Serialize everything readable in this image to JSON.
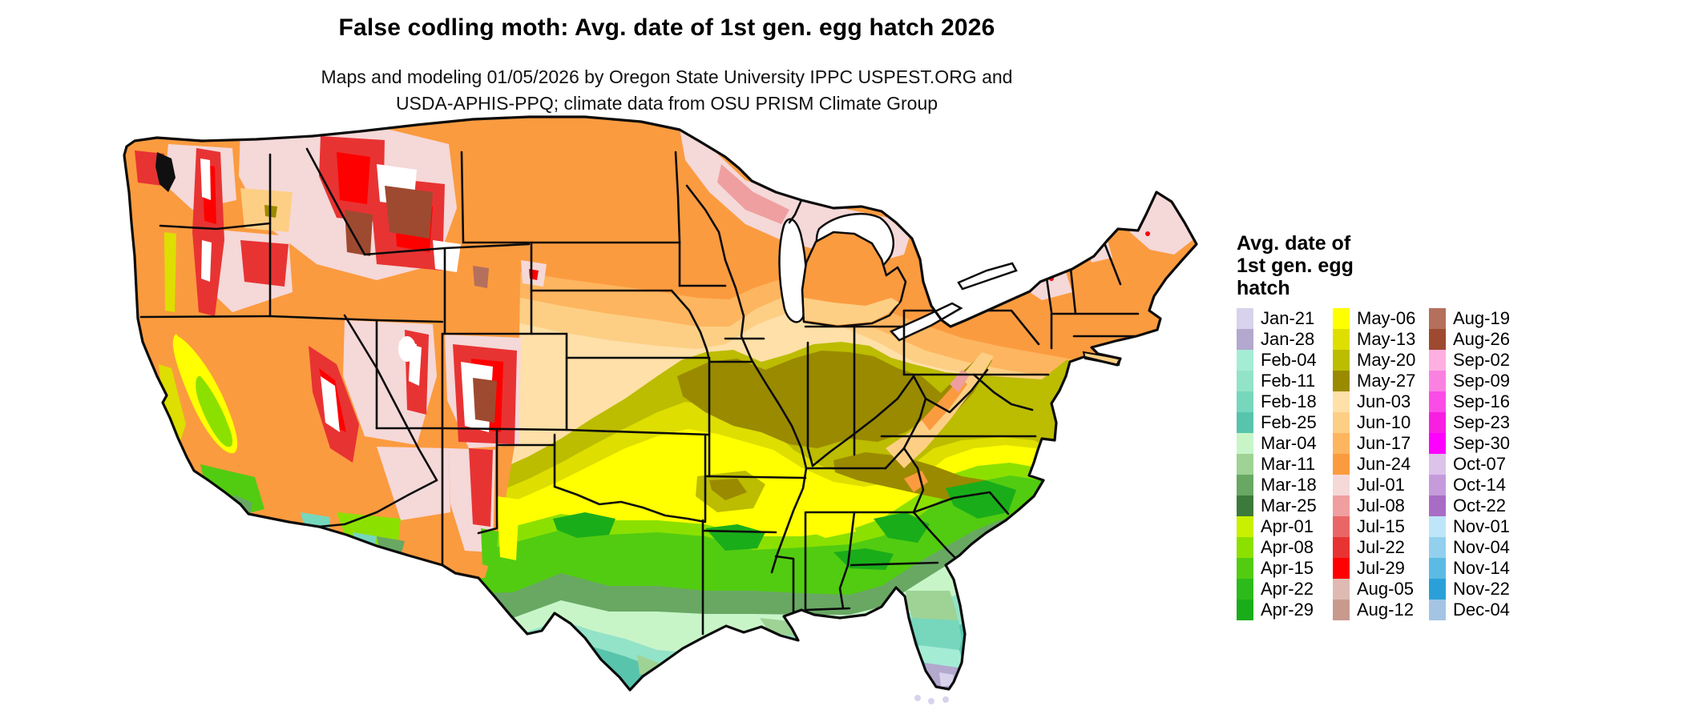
{
  "title": "False codling moth: Avg. date of 1st gen. egg hatch 2026",
  "subtitle_line1": "Maps and modeling 01/05/2026 by Oregon State University IPPC USPEST.ORG and",
  "subtitle_line2": "USDA-APHIS-PPQ; climate data from OSU PRISM Climate Group",
  "map": {
    "region": "Continental United States",
    "kind": "choropleth raster of average date of first generation egg hatch"
  },
  "legend": {
    "title_lines": [
      "Avg. date of",
      "1st gen. egg",
      "hatch"
    ],
    "columns": [
      {
        "entries": [
          {
            "label": "Jan-21",
            "color_key": "jan21"
          },
          {
            "label": "Jan-28",
            "color_key": "jan28"
          },
          {
            "label": "Feb-04",
            "color_key": "feb04"
          },
          {
            "label": "Feb-11",
            "color_key": "feb11"
          },
          {
            "label": "Feb-18",
            "color_key": "feb18"
          },
          {
            "label": "Feb-25",
            "color_key": "feb25"
          },
          {
            "label": "Mar-04",
            "color_key": "mar04"
          },
          {
            "label": "Mar-11",
            "color_key": "mar11"
          },
          {
            "label": "Mar-18",
            "color_key": "mar18"
          },
          {
            "label": "Mar-25",
            "color_key": "mar25"
          },
          {
            "label": "Apr-01",
            "color_key": "apr01"
          },
          {
            "label": "Apr-08",
            "color_key": "apr08"
          },
          {
            "label": "Apr-15",
            "color_key": "apr15"
          },
          {
            "label": "Apr-22",
            "color_key": "apr22"
          },
          {
            "label": "Apr-29",
            "color_key": "apr29"
          }
        ]
      },
      {
        "entries": [
          {
            "label": "May-06",
            "color_key": "may06"
          },
          {
            "label": "May-13",
            "color_key": "may13"
          },
          {
            "label": "May-20",
            "color_key": "may20"
          },
          {
            "label": "May-27",
            "color_key": "may27"
          },
          {
            "label": "Jun-03",
            "color_key": "jun03"
          },
          {
            "label": "Jun-10",
            "color_key": "jun10"
          },
          {
            "label": "Jun-17",
            "color_key": "jun17"
          },
          {
            "label": "Jun-24",
            "color_key": "jun24"
          },
          {
            "label": "Jul-01",
            "color_key": "jul01"
          },
          {
            "label": "Jul-08",
            "color_key": "jul08"
          },
          {
            "label": "Jul-15",
            "color_key": "jul15"
          },
          {
            "label": "Jul-22",
            "color_key": "jul22"
          },
          {
            "label": "Jul-29",
            "color_key": "jul29"
          },
          {
            "label": "Aug-05",
            "color_key": "aug05"
          },
          {
            "label": "Aug-12",
            "color_key": "aug12"
          }
        ]
      },
      {
        "entries": [
          {
            "label": "Aug-19",
            "color_key": "aug19"
          },
          {
            "label": "Aug-26",
            "color_key": "aug26"
          },
          {
            "label": "Sep-02",
            "color_key": "sep02"
          },
          {
            "label": "Sep-09",
            "color_key": "sep09"
          },
          {
            "label": "Sep-16",
            "color_key": "sep16"
          },
          {
            "label": "Sep-23",
            "color_key": "sep23"
          },
          {
            "label": "Sep-30",
            "color_key": "sep30"
          },
          {
            "label": "Oct-07",
            "color_key": "oct07"
          },
          {
            "label": "Oct-14",
            "color_key": "oct14"
          },
          {
            "label": "Oct-22",
            "color_key": "oct22"
          },
          {
            "label": "Nov-01",
            "color_key": "nov01"
          },
          {
            "label": "Nov-04",
            "color_key": "nov04"
          },
          {
            "label": "Nov-14",
            "color_key": "nov14"
          },
          {
            "label": "Nov-22",
            "color_key": "nov22"
          },
          {
            "label": "Dec-04",
            "color_key": "dec04"
          }
        ]
      }
    ]
  },
  "colors": {
    "jan21": "#d9d2ec",
    "jan28": "#b3a8ce",
    "feb04": "#a5ecd5",
    "feb11": "#93e3c8",
    "feb18": "#76d7bd",
    "feb25": "#58c4ac",
    "mar04": "#c8f5c8",
    "mar11": "#9ed395",
    "mar18": "#68a863",
    "mar25": "#3c7a3c",
    "apr01": "#c9f000",
    "apr08": "#8ce000",
    "apr15": "#52cc11",
    "apr22": "#2cbb1a",
    "apr29": "#1aad1a",
    "may06": "#ffff00",
    "may13": "#dede00",
    "may20": "#bcbc00",
    "may27": "#9a8a00",
    "jun03": "#fee0a8",
    "jun10": "#fdcf85",
    "jun17": "#fdb55f",
    "jun24": "#fb9b3f",
    "jul01": "#f5d8d8",
    "jul08": "#ef9f9f",
    "jul15": "#ea6666",
    "jul22": "#e83333",
    "jul29": "#fe0000",
    "aug05": "#debab2",
    "aug12": "#c89a8e",
    "aug19": "#b4705c",
    "aug26": "#9e4a30",
    "sep02": "#ffb0e0",
    "sep09": "#fb81e1",
    "sep16": "#fb4ce8",
    "sep23": "#f81ee2",
    "sep30": "#ff00ff",
    "oct07": "#ddc2ea",
    "oct14": "#c69bdb",
    "oct22": "#a96cc6",
    "nov01": "#bfe6f8",
    "nov04": "#92d0ee",
    "nov14": "#5cbbe4",
    "nov22": "#2ba0d8",
    "dec04": "#a4c4e4",
    "water": "#ffffff",
    "snow": "#ffffff",
    "sound": "#101010"
  }
}
